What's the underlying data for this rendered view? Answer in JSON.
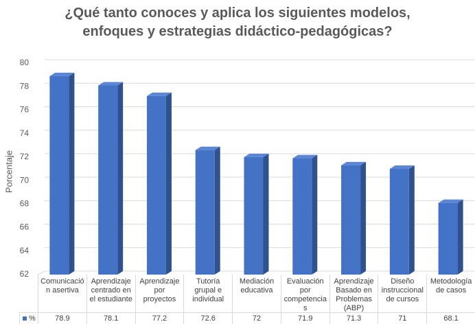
{
  "chart_data": {
    "type": "bar3d",
    "title": "¿Qué tanto conoces y aplica los siguientes modelos, enfoques y estrategias didáctico-pedagógicas?",
    "ylabel": "Porcentaje",
    "categories": [
      "Comunicación asertiva",
      "Aprendizaje centrado en el estudiante",
      "Aprendizaje por proyectos",
      "Tutoría grupal e individual",
      "Mediación educativa",
      "Evaluación por competencias",
      "Aprendizaje Basado en Problemas (ABP)",
      "Diseño instruccional de cursos",
      "Metodología de casos"
    ],
    "series": [
      {
        "name": "%",
        "color": "#4472c4",
        "values": [
          78.9,
          78.1,
          77.2,
          72.6,
          72,
          71.9,
          71.3,
          71,
          68.1
        ]
      }
    ],
    "ylim": [
      62,
      80
    ],
    "yticks": [
      62,
      64,
      66,
      68,
      70,
      72,
      74,
      76,
      78,
      80
    ],
    "grid": true
  }
}
